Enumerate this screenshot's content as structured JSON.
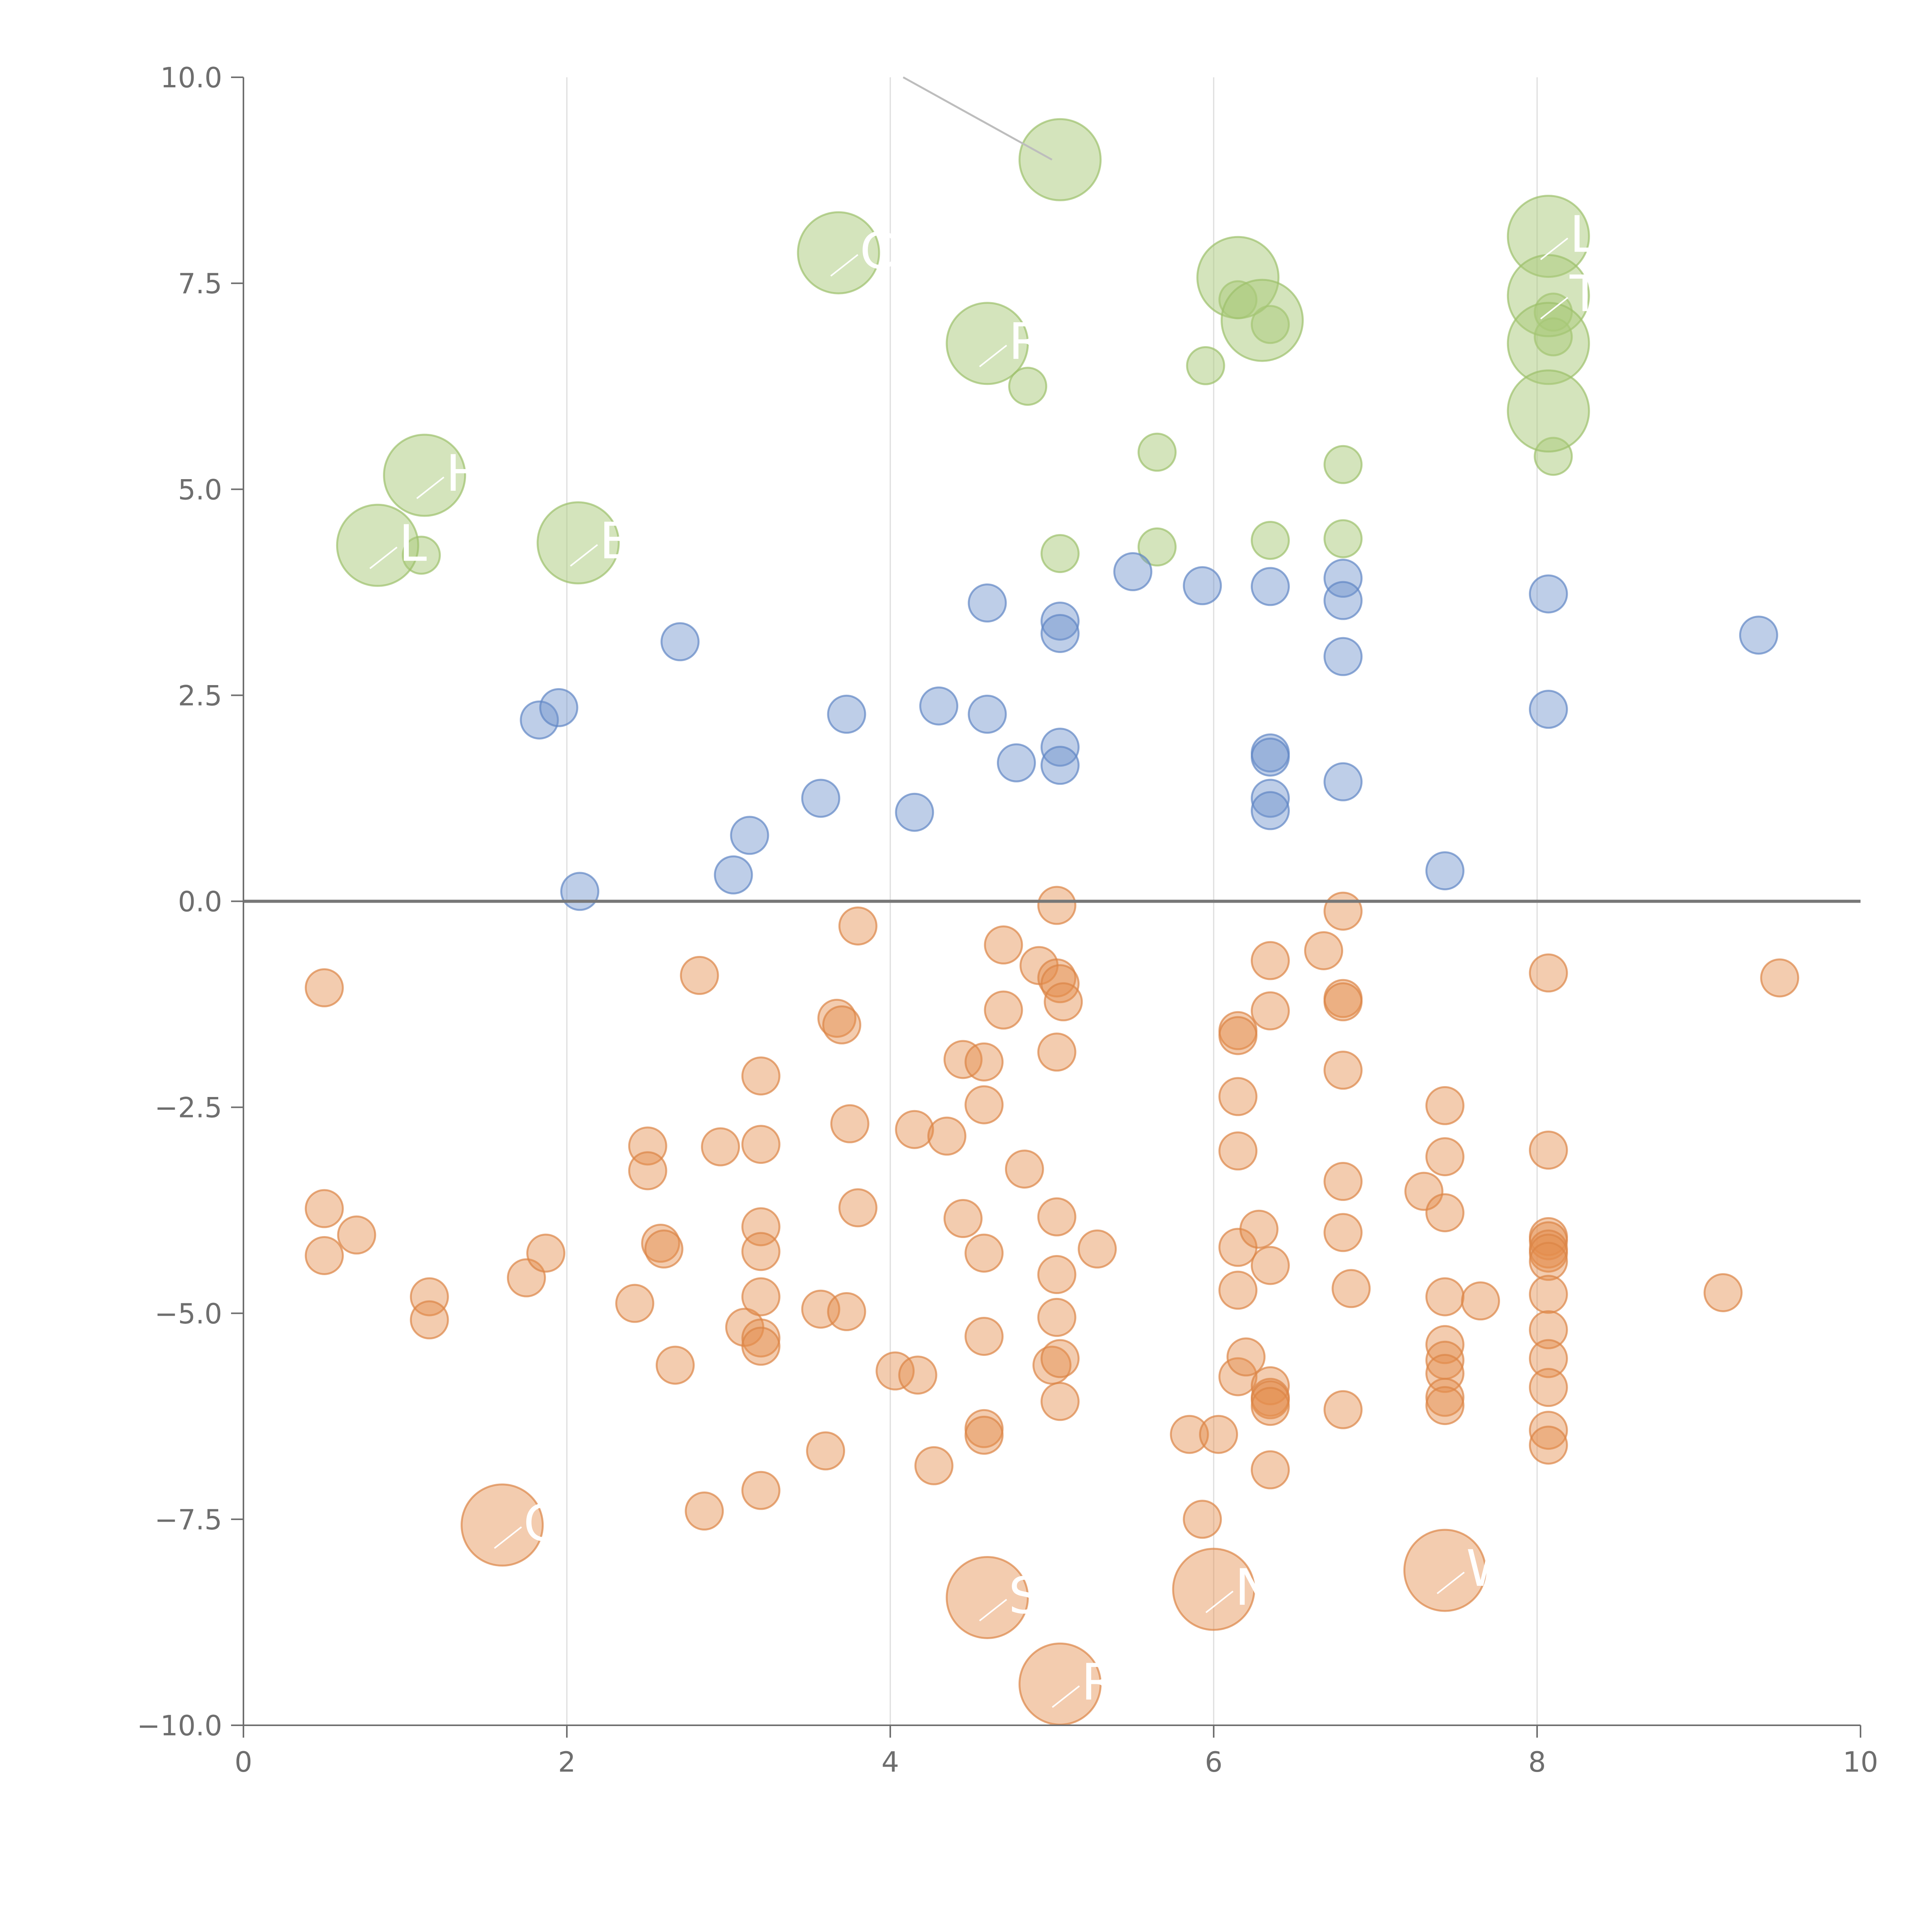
{
  "chart_data": {
    "type": "scatter",
    "title": "",
    "xlabel": "",
    "ylabel": "",
    "xlim": [
      0,
      10
    ],
    "ylim": [
      -10,
      10
    ],
    "x_ticks": [
      0,
      2,
      4,
      6,
      8,
      10
    ],
    "x_tick_labels": [
      "0",
      "2",
      "4",
      "6",
      "8",
      "10"
    ],
    "y_ticks": [
      10,
      7.5,
      5,
      2.5,
      0,
      -2.5,
      -5,
      -7.5,
      -10
    ],
    "y_tick_labels": [
      "10.0",
      "7.5",
      "5.0",
      "2.5",
      "0.0",
      "−2.5",
      "−5.0",
      "−7.5",
      "−10.0"
    ],
    "vertical_grid_at": [
      2,
      4,
      6,
      8
    ],
    "horizontal_reference_line": 0,
    "colors": {
      "positive": "#6f93cc",
      "negative": "#e48d4d",
      "high": "#a9c97a"
    },
    "series": [
      {
        "name": "high",
        "size": "small",
        "points": [
          [
            1.1,
            4.2
          ],
          [
            4.85,
            6.25
          ],
          [
            5.05,
            4.22
          ],
          [
            5.65,
            5.45
          ],
          [
            5.65,
            4.3
          ],
          [
            6.15,
            7.3
          ],
          [
            6.35,
            7.0
          ],
          [
            6.35,
            4.38
          ],
          [
            6.8,
            5.3
          ],
          [
            6.8,
            4.4
          ],
          [
            8.1,
            7.15
          ],
          [
            8.1,
            6.85
          ],
          [
            8.1,
            5.4
          ],
          [
            5.95,
            6.5
          ]
        ]
      },
      {
        "name": "high-labelled",
        "size": "large",
        "points": [
          [
            0.83,
            4.32
          ],
          [
            1.12,
            5.17
          ],
          [
            2.07,
            4.35
          ],
          [
            3.68,
            7.87
          ],
          [
            4.6,
            6.77
          ],
          [
            5.05,
            9.0
          ],
          [
            6.15,
            7.57
          ],
          [
            6.3,
            7.05
          ],
          [
            8.07,
            8.07
          ],
          [
            8.07,
            7.35
          ],
          [
            8.07,
            6.77
          ],
          [
            8.07,
            5.95
          ]
        ],
        "labels": [
          "L",
          "H",
          "B",
          "C",
          "R",
          "",
          "",
          "",
          "L",
          "T",
          "",
          ""
        ]
      },
      {
        "name": "positive",
        "size": "small",
        "points": [
          [
            1.83,
            2.2
          ],
          [
            1.95,
            2.35
          ],
          [
            2.08,
            0.12
          ],
          [
            2.7,
            3.15
          ],
          [
            3.03,
            0.32
          ],
          [
            3.13,
            0.8
          ],
          [
            3.57,
            1.25
          ],
          [
            3.73,
            2.27
          ],
          [
            4.15,
            1.08
          ],
          [
            4.3,
            2.37
          ],
          [
            4.6,
            3.62
          ],
          [
            4.6,
            2.27
          ],
          [
            4.78,
            1.68
          ],
          [
            5.05,
            3.4
          ],
          [
            5.05,
            3.25
          ],
          [
            5.05,
            1.87
          ],
          [
            5.05,
            1.65
          ],
          [
            5.5,
            4.0
          ],
          [
            5.93,
            3.83
          ],
          [
            6.35,
            3.82
          ],
          [
            6.35,
            1.8
          ],
          [
            6.35,
            1.75
          ],
          [
            6.35,
            1.25
          ],
          [
            6.35,
            1.1
          ],
          [
            6.8,
            3.92
          ],
          [
            6.8,
            3.65
          ],
          [
            6.8,
            2.97
          ],
          [
            6.8,
            1.45
          ],
          [
            7.43,
            0.37
          ],
          [
            8.07,
            3.73
          ],
          [
            8.07,
            2.33
          ],
          [
            9.37,
            3.23
          ]
        ]
      },
      {
        "name": "negative",
        "size": "small",
        "points": [
          [
            0.5,
            -1.05
          ],
          [
            0.5,
            -3.73
          ],
          [
            0.5,
            -4.3
          ],
          [
            0.7,
            -4.05
          ],
          [
            1.15,
            -4.8
          ],
          [
            1.15,
            -5.08
          ],
          [
            1.75,
            -4.57
          ],
          [
            1.87,
            -4.27
          ],
          [
            2.42,
            -4.88
          ],
          [
            2.5,
            -2.97
          ],
          [
            2.5,
            -3.27
          ],
          [
            2.58,
            -4.15
          ],
          [
            2.6,
            -4.22
          ],
          [
            2.67,
            -5.63
          ],
          [
            2.82,
            -0.9
          ],
          [
            2.85,
            -7.4
          ],
          [
            2.95,
            -2.98
          ],
          [
            3.1,
            -5.17
          ],
          [
            3.2,
            -2.12
          ],
          [
            3.2,
            -2.95
          ],
          [
            3.2,
            -3.95
          ],
          [
            3.2,
            -4.25
          ],
          [
            3.2,
            -4.8
          ],
          [
            3.2,
            -5.3
          ],
          [
            3.2,
            -5.4
          ],
          [
            3.2,
            -7.15
          ],
          [
            3.57,
            -4.95
          ],
          [
            3.6,
            -6.67
          ],
          [
            3.67,
            -1.42
          ],
          [
            3.7,
            -1.5
          ],
          [
            3.73,
            -4.98
          ],
          [
            3.75,
            -2.7
          ],
          [
            3.8,
            -3.72
          ],
          [
            3.8,
            -0.3
          ],
          [
            4.03,
            -5.7
          ],
          [
            4.15,
            -2.77
          ],
          [
            4.17,
            -5.75
          ],
          [
            4.27,
            -6.85
          ],
          [
            4.35,
            -2.85
          ],
          [
            4.45,
            -1.92
          ],
          [
            4.45,
            -3.85
          ],
          [
            4.58,
            -1.95
          ],
          [
            4.58,
            -2.47
          ],
          [
            4.58,
            -4.27
          ],
          [
            4.58,
            -5.28
          ],
          [
            4.58,
            -6.4
          ],
          [
            4.58,
            -6.48
          ],
          [
            4.7,
            -0.53
          ],
          [
            4.7,
            -1.32
          ],
          [
            4.83,
            -3.25
          ],
          [
            4.92,
            -0.78
          ],
          [
            5.0,
            -5.63
          ],
          [
            5.03,
            -0.05
          ],
          [
            5.03,
            -0.93
          ],
          [
            5.03,
            -1.83
          ],
          [
            5.03,
            -3.83
          ],
          [
            5.03,
            -4.53
          ],
          [
            5.03,
            -5.05
          ],
          [
            5.05,
            -1.0
          ],
          [
            5.05,
            -5.55
          ],
          [
            5.05,
            -6.07
          ],
          [
            5.07,
            -1.22
          ],
          [
            5.28,
            -4.22
          ],
          [
            5.85,
            -6.47
          ],
          [
            5.93,
            -7.5
          ],
          [
            6.03,
            -6.47
          ],
          [
            6.15,
            -1.57
          ],
          [
            6.15,
            -1.63
          ],
          [
            6.15,
            -2.37
          ],
          [
            6.15,
            -3.03
          ],
          [
            6.15,
            -4.2
          ],
          [
            6.15,
            -4.72
          ],
          [
            6.15,
            -5.77
          ],
          [
            6.2,
            -5.53
          ],
          [
            6.28,
            -3.98
          ],
          [
            6.35,
            -0.72
          ],
          [
            6.35,
            -1.33
          ],
          [
            6.35,
            -4.42
          ],
          [
            6.35,
            -5.88
          ],
          [
            6.35,
            -6.02
          ],
          [
            6.35,
            -6.05
          ],
          [
            6.35,
            -6.13
          ],
          [
            6.35,
            -6.9
          ],
          [
            6.68,
            -0.6
          ],
          [
            6.8,
            -0.12
          ],
          [
            6.8,
            -1.18
          ],
          [
            6.8,
            -1.22
          ],
          [
            6.8,
            -2.05
          ],
          [
            6.8,
            -3.4
          ],
          [
            6.8,
            -4.02
          ],
          [
            6.8,
            -6.17
          ],
          [
            6.85,
            -4.7
          ],
          [
            7.3,
            -3.52
          ],
          [
            7.43,
            -2.48
          ],
          [
            7.43,
            -3.1
          ],
          [
            7.43,
            -3.78
          ],
          [
            7.43,
            -4.8
          ],
          [
            7.43,
            -5.38
          ],
          [
            7.43,
            -5.57
          ],
          [
            7.43,
            -5.73
          ],
          [
            7.43,
            -6.02
          ],
          [
            7.43,
            -6.12
          ],
          [
            7.65,
            -4.85
          ],
          [
            8.07,
            -0.87
          ],
          [
            8.07,
            -3.02
          ],
          [
            8.07,
            -4.07
          ],
          [
            8.07,
            -4.12
          ],
          [
            8.07,
            -4.22
          ],
          [
            8.07,
            -4.27
          ],
          [
            8.07,
            -4.37
          ],
          [
            8.07,
            -4.77
          ],
          [
            8.07,
            -5.2
          ],
          [
            8.07,
            -5.55
          ],
          [
            8.07,
            -5.9
          ],
          [
            8.07,
            -6.42
          ],
          [
            8.07,
            -6.6
          ],
          [
            9.15,
            -4.75
          ],
          [
            9.5,
            -0.93
          ]
        ]
      },
      {
        "name": "negative-labelled",
        "size": "large",
        "points": [
          [
            1.6,
            -7.57
          ],
          [
            4.6,
            -8.45
          ],
          [
            5.05,
            -9.5
          ],
          [
            6.0,
            -8.35
          ],
          [
            7.43,
            -8.12
          ]
        ],
        "labels": [
          "C",
          "SE",
          "R",
          "N",
          "W"
        ]
      }
    ]
  }
}
